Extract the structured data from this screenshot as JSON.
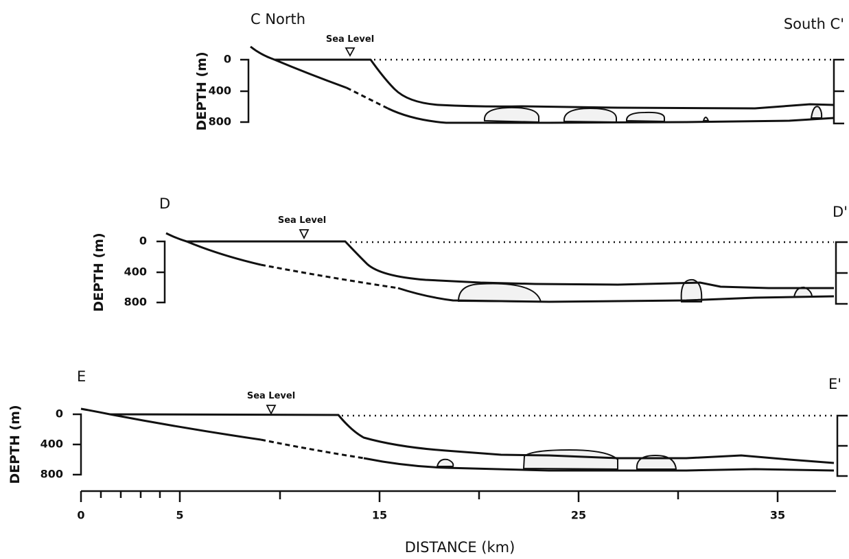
{
  "panels": [
    {
      "left_label": "C North",
      "right_label": "South C'",
      "sea_level": "Sea Level",
      "y_axis_label": "DEPTH (m)",
      "yticks": [
        "0",
        "400",
        "800"
      ]
    },
    {
      "left_label": "D",
      "right_label": "D'",
      "sea_level": "Sea Level",
      "y_axis_label": "DEPTH (m)",
      "yticks": [
        "0",
        "400",
        "800"
      ]
    },
    {
      "left_label": "E",
      "right_label": "E'",
      "sea_level": "Sea Level",
      "y_axis_label": "DEPTH (m)",
      "yticks": [
        "0",
        "400",
        "800"
      ]
    }
  ],
  "x_axis": {
    "label": "DISTANCE (km)",
    "ticks": [
      "0",
      "5",
      "15",
      "25",
      "35"
    ]
  }
}
